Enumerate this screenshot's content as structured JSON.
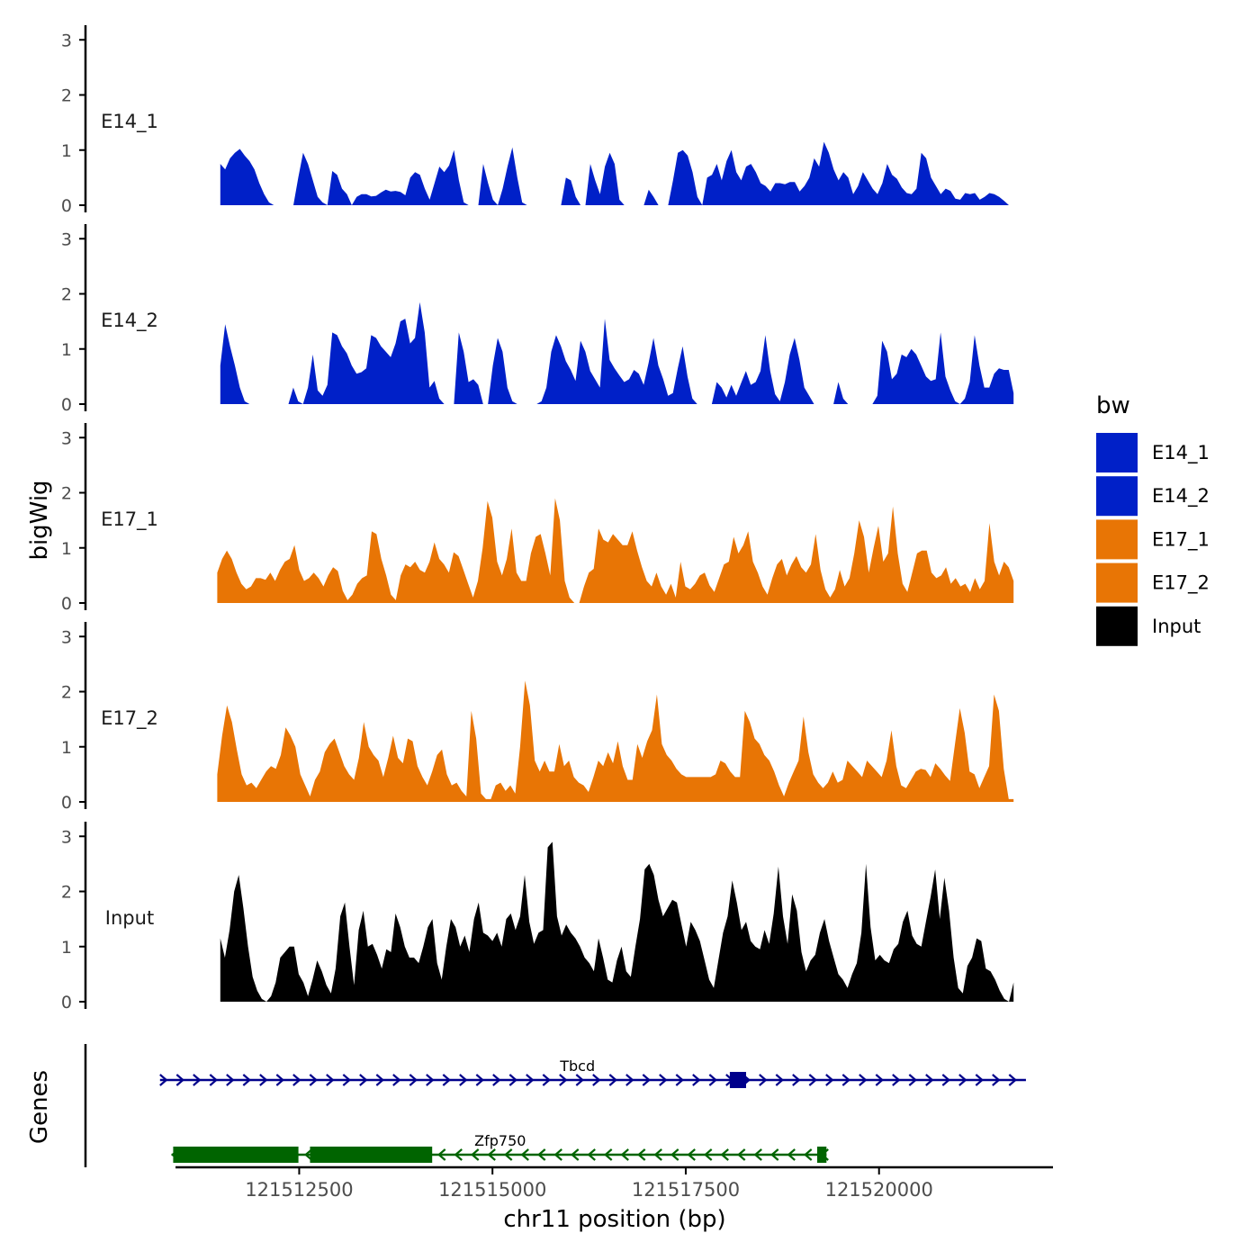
{
  "chart_data": {
    "type": "area",
    "title": "",
    "ylabel": "bigWig",
    "xlabel": "chr11 position (bp)",
    "xlim": [
      121510900,
      121522250
    ],
    "ylim": [
      0,
      3.2
    ],
    "yticks": [
      0,
      1,
      2,
      3
    ],
    "xticks": [
      121512500,
      121515000,
      121517500,
      121520000
    ],
    "xtick_labels": [
      "121512500",
      "121515000",
      "121517500",
      "121520000"
    ],
    "colors": {
      "E14_1": "#0020c8",
      "E14_2": "#0020c8",
      "E17_1": "#e87505",
      "E17_2": "#e87505",
      "Input": "#000000"
    },
    "series": [
      {
        "name": "E14_1",
        "start": 121511480,
        "end": 121521680,
        "values": [
          0.75,
          0.65,
          0.85,
          0.95,
          1.02,
          0.9,
          0.8,
          0.65,
          0.4,
          0.2,
          0.05,
          0,
          0,
          0,
          0,
          0,
          0.5,
          0.95,
          0.75,
          0.45,
          0.15,
          0.05,
          0,
          0.62,
          0.55,
          0.3,
          0.2,
          0,
          0.15,
          0.2,
          0.2,
          0.16,
          0.17,
          0.23,
          0.28,
          0.25,
          0.26,
          0.24,
          0.18,
          0.5,
          0.6,
          0.55,
          0.3,
          0.1,
          0.4,
          0.7,
          0.6,
          0.72,
          1,
          0.45,
          0.05,
          0,
          0,
          0,
          0.75,
          0.4,
          0.1,
          0,
          0.3,
          0.7,
          1.05,
          0.5,
          0.05,
          0,
          0,
          0,
          0,
          0,
          0,
          0,
          0,
          0.5,
          0.45,
          0.15,
          0,
          0,
          0.75,
          0.45,
          0.2,
          0.7,
          0.95,
          0.75,
          0.1,
          0,
          0,
          0,
          0,
          0,
          0.28,
          0.15,
          0,
          0,
          0,
          0.45,
          0.95,
          1.0,
          0.9,
          0.6,
          0.15,
          0,
          0.5,
          0.55,
          0.75,
          0.45,
          0.8,
          1.0,
          0.6,
          0.45,
          0.7,
          0.75,
          0.6,
          0.4,
          0.35,
          0.25,
          0.4,
          0.4,
          0.38,
          0.42,
          0.42,
          0.25,
          0.35,
          0.5,
          0.85,
          0.7,
          1.15,
          0.95,
          0.65,
          0.45,
          0.6,
          0.5,
          0.2,
          0.35,
          0.6,
          0.45,
          0.3,
          0.2,
          0.4,
          0.75,
          0.55,
          0.48,
          0.32,
          0.22,
          0.2,
          0.3,
          0.95,
          0.85,
          0.5,
          0.35,
          0.2,
          0.3,
          0.26,
          0.12,
          0.1,
          0.22,
          0.2,
          0.22,
          0.1,
          0.15,
          0.22,
          0.2,
          0.15,
          0.08,
          0
        ]
      },
      {
        "name": "E14_2",
        "start": 121511480,
        "end": 121521740,
        "values": [
          0.7,
          1.45,
          1.05,
          0.7,
          0.3,
          0.05,
          0,
          0,
          0,
          0,
          0,
          0,
          0,
          0,
          0,
          0.3,
          0.05,
          0,
          0.3,
          0.9,
          0.25,
          0.15,
          0.35,
          1.3,
          1.25,
          1.05,
          0.92,
          0.7,
          0.55,
          0.58,
          0.65,
          1.25,
          1.2,
          1.05,
          0.95,
          0.85,
          1.1,
          1.5,
          1.55,
          1.1,
          1.2,
          1.85,
          1.3,
          0.3,
          0.42,
          0.1,
          0,
          0,
          0,
          1.3,
          0.95,
          0.4,
          0.45,
          0.35,
          0,
          0,
          0.7,
          1.2,
          0.95,
          0.3,
          0.05,
          0,
          0,
          0,
          0,
          0,
          0.05,
          0.3,
          0.95,
          1.25,
          1.05,
          0.78,
          0.62,
          0.42,
          1.15,
          0.95,
          0.6,
          0.45,
          0.3,
          1.55,
          0.8,
          0.65,
          0.52,
          0.4,
          0.45,
          0.62,
          0.55,
          0.35,
          0.75,
          1.2,
          0.7,
          0.45,
          0.15,
          0.2,
          0.65,
          1.05,
          0.5,
          0.1,
          0,
          0,
          0,
          0,
          0.4,
          0.3,
          0.12,
          0.35,
          0.15,
          0.38,
          0.6,
          0.35,
          0.4,
          0.6,
          1.25,
          0.6,
          0.18,
          0.05,
          0.4,
          0.9,
          1.2,
          0.8,
          0.3,
          0.15,
          0,
          0,
          0,
          0,
          0,
          0.4,
          0.1,
          0,
          0,
          0,
          0,
          0,
          0,
          0.15,
          1.15,
          0.95,
          0.45,
          0.55,
          0.9,
          0.85,
          1.0,
          0.9,
          0.7,
          0.5,
          0.42,
          0.45,
          1.3,
          0.5,
          0.25,
          0.05,
          0,
          0.1,
          0.4,
          1.25,
          0.7,
          0.3,
          0.3,
          0.55,
          0.65,
          0.62,
          0.62,
          0.2
        ]
      },
      {
        "name": "E17_1",
        "start": 121511440,
        "end": 121521740,
        "values": [
          0.55,
          0.8,
          0.95,
          0.8,
          0.55,
          0.35,
          0.25,
          0.3,
          0.45,
          0.45,
          0.42,
          0.55,
          0.4,
          0.6,
          0.75,
          0.8,
          1.05,
          0.6,
          0.4,
          0.45,
          0.55,
          0.45,
          0.3,
          0.5,
          0.65,
          0.58,
          0.22,
          0.05,
          0.15,
          0.35,
          0.45,
          0.5,
          1.3,
          1.25,
          0.8,
          0.5,
          0.15,
          0.05,
          0.5,
          0.7,
          0.65,
          0.75,
          0.6,
          0.55,
          0.75,
          1.1,
          0.8,
          0.7,
          0.55,
          0.92,
          0.85,
          0.6,
          0.35,
          0.1,
          0.4,
          1.0,
          1.85,
          1.55,
          0.75,
          0.5,
          0.8,
          1.35,
          0.55,
          0.4,
          0.4,
          0.9,
          1.2,
          1.25,
          0.9,
          0.5,
          1.9,
          1.5,
          0.4,
          0.1,
          0,
          0,
          0.3,
          0.55,
          0.62,
          1.35,
          1.15,
          1.1,
          1.25,
          1.15,
          1.05,
          1.05,
          1.3,
          0.95,
          0.65,
          0.4,
          0.3,
          0.55,
          0.3,
          0.15,
          0.35,
          0.1,
          0.75,
          0.3,
          0.25,
          0.35,
          0.5,
          0.55,
          0.32,
          0.2,
          0.45,
          0.7,
          0.75,
          1.2,
          0.9,
          1.05,
          1.3,
          0.75,
          0.55,
          0.3,
          0.15,
          0.45,
          0.7,
          0.8,
          0.5,
          0.7,
          0.85,
          0.65,
          0.55,
          0.7,
          1.25,
          0.6,
          0.25,
          0.1,
          0.25,
          0.6,
          0.3,
          0.45,
          0.9,
          1.5,
          1.2,
          0.55,
          1.0,
          1.4,
          0.75,
          0.9,
          1.75,
          0.9,
          0.35,
          0.2,
          0.55,
          0.9,
          0.95,
          0.95,
          0.55,
          0.45,
          0.5,
          0.65,
          0.35,
          0.45,
          0.3,
          0.35,
          0.2,
          0.45,
          0.25,
          0.4,
          1.45,
          0.75,
          0.5,
          0.75,
          0.65,
          0.4
        ]
      },
      {
        "name": "E17_2",
        "start": 121511440,
        "end": 121521740,
        "values": [
          0.5,
          1.2,
          1.75,
          1.45,
          0.95,
          0.5,
          0.3,
          0.35,
          0.25,
          0.4,
          0.55,
          0.65,
          0.6,
          0.85,
          1.35,
          1.2,
          1.0,
          0.5,
          0.3,
          0.1,
          0.4,
          0.55,
          0.9,
          1.05,
          1.15,
          0.9,
          0.65,
          0.5,
          0.4,
          0.8,
          1.45,
          1.0,
          0.85,
          0.75,
          0.45,
          0.8,
          1.2,
          0.8,
          0.7,
          1.15,
          1.1,
          0.65,
          0.45,
          0.3,
          0.55,
          0.85,
          0.95,
          0.5,
          0.3,
          0.35,
          0.2,
          0.1,
          1.65,
          1.15,
          0.15,
          0.05,
          0.05,
          0.3,
          0.35,
          0.2,
          0.3,
          0.15,
          1.0,
          2.2,
          1.75,
          0.75,
          0.55,
          0.75,
          0.55,
          0.55,
          1.05,
          0.65,
          0.75,
          0.45,
          0.35,
          0.3,
          0.18,
          0.45,
          0.75,
          0.65,
          0.9,
          0.7,
          1.1,
          0.65,
          0.4,
          0.4,
          1.05,
          0.8,
          1.1,
          1.3,
          1.95,
          1.05,
          0.85,
          0.75,
          0.6,
          0.5,
          0.45,
          0.45,
          0.45,
          0.45,
          0.45,
          0.45,
          0.5,
          0.75,
          0.7,
          0.55,
          0.45,
          0.45,
          1.65,
          1.45,
          1.15,
          1.05,
          0.85,
          0.75,
          0.55,
          0.3,
          0.1,
          0.35,
          0.55,
          0.75,
          1.55,
          0.9,
          0.5,
          0.35,
          0.25,
          0.35,
          0.55,
          0.35,
          0.4,
          0.75,
          0.65,
          0.55,
          0.45,
          0.75,
          0.65,
          0.55,
          0.45,
          0.75,
          1.3,
          0.65,
          0.3,
          0.25,
          0.4,
          0.55,
          0.6,
          0.58,
          0.45,
          0.7,
          0.6,
          0.48,
          0.38,
          1.05,
          1.7,
          1.25,
          0.55,
          0.5,
          0.25,
          0.45,
          0.65,
          1.95,
          1.65,
          0.6,
          0.05,
          0.05
        ]
      },
      {
        "name": "Input",
        "start": 121511480,
        "end": 121521740,
        "values": [
          1.15,
          0.8,
          1.3,
          2.0,
          2.3,
          1.7,
          1.0,
          0.45,
          0.2,
          0.05,
          0,
          0.1,
          0.35,
          0.8,
          0.9,
          1.0,
          1.0,
          0.5,
          0.35,
          0.1,
          0.4,
          0.75,
          0.55,
          0.3,
          0.15,
          0.6,
          1.55,
          1.8,
          1.0,
          0.3,
          1.3,
          1.65,
          1.0,
          1.05,
          0.85,
          0.6,
          0.95,
          0.9,
          1.6,
          1.35,
          1.0,
          0.8,
          0.8,
          0.7,
          1.0,
          1.35,
          1.5,
          0.7,
          0.4,
          1.0,
          1.5,
          1.35,
          1.0,
          1.2,
          0.9,
          1.5,
          1.8,
          1.25,
          1.2,
          1.1,
          1.25,
          1.0,
          1.5,
          1.6,
          1.3,
          1.55,
          2.3,
          1.45,
          1.05,
          1.25,
          1.3,
          2.8,
          2.9,
          1.55,
          1.2,
          1.4,
          1.25,
          1.15,
          1.0,
          0.8,
          0.7,
          0.55,
          1.15,
          0.8,
          0.4,
          0.35,
          0.75,
          1.0,
          0.55,
          0.45,
          1.0,
          1.5,
          2.4,
          2.5,
          2.3,
          1.85,
          1.55,
          1.7,
          1.85,
          1.8,
          1.4,
          1.0,
          1.45,
          1.3,
          1.1,
          0.75,
          0.4,
          0.25,
          0.75,
          1.25,
          1.55,
          2.2,
          1.8,
          1.3,
          1.45,
          1.1,
          1.0,
          0.95,
          1.3,
          1.05,
          1.6,
          2.45,
          1.55,
          1.05,
          1.95,
          1.65,
          0.9,
          0.55,
          0.75,
          0.85,
          1.25,
          1.5,
          1.1,
          0.8,
          0.5,
          0.4,
          0.25,
          0.5,
          0.7,
          1.25,
          2.5,
          1.35,
          0.75,
          0.85,
          0.75,
          0.7,
          0.95,
          1.05,
          1.45,
          1.65,
          1.2,
          1.05,
          1.0,
          1.45,
          1.9,
          2.4,
          1.5,
          2.25,
          1.65,
          0.8,
          0.25,
          0.15,
          0.65,
          0.8,
          1.15,
          1.1,
          0.6,
          0.55,
          0.4,
          0.2,
          0.05,
          0,
          0.35
        ]
      }
    ],
    "genes": {
      "label": "Genes",
      "items": [
        {
          "name": "Tbcd",
          "strand": "+",
          "start": 121510700,
          "end": 121521900,
          "color": "#00008b",
          "exons": [
            [
              121518070,
              121518280
            ]
          ],
          "label_pos": 121516100
        },
        {
          "name": "Zfp750",
          "strand": "-",
          "start": 121510850,
          "end": 121519320,
          "color": "#006400",
          "exons": [
            [
              121510870,
              121512490
            ],
            [
              121512640,
              121514220
            ],
            [
              121519200,
              121519320
            ]
          ],
          "label_pos": 121515100
        }
      ]
    },
    "legend": {
      "title": "bw",
      "position": "right",
      "entries": [
        {
          "label": "E14_1",
          "color": "#0020c8"
        },
        {
          "label": "E14_2",
          "color": "#0020c8"
        },
        {
          "label": "E17_1",
          "color": "#e87505"
        },
        {
          "label": "E17_2",
          "color": "#e87505"
        },
        {
          "label": "Input",
          "color": "#000000"
        }
      ]
    }
  }
}
